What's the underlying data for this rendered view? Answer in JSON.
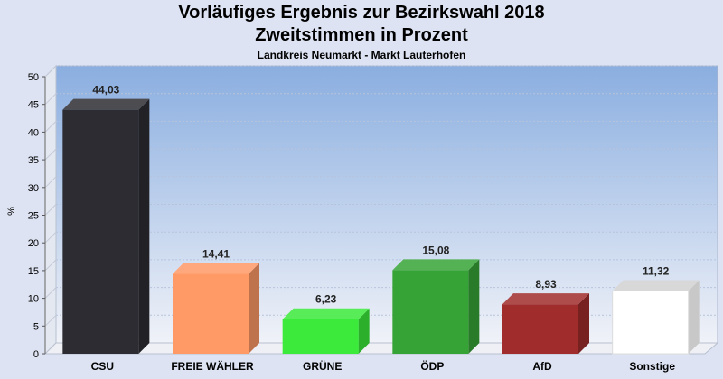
{
  "header": {
    "title_line1": "Vorläufiges Ergebnis zur Bezirkswahl 2018",
    "title_line2": "Zweitstimmen in Prozent",
    "subtitle": "Landkreis Neumarkt - Markt Lauterhofen"
  },
  "colors": {
    "CSU": "#2c2c32",
    "FREIE WÄHLER": "#ff9966",
    "GRÜNE": "#3bea3b",
    "ÖDP": "#36a336",
    "AfD": "#a02c2c",
    "Sonstige": "#ffffff",
    "plot_top": "#8aaee0",
    "plot_bottom": "#f0f2f8"
  },
  "chart_data": {
    "type": "bar",
    "title": "Vorläufiges Ergebnis zur Bezirkswahl 2018",
    "subtitle": "Zweitstimmen in Prozent",
    "ylabel": "%",
    "ylim": [
      0,
      50
    ],
    "yticks": [
      "0",
      "5",
      "10",
      "15",
      "20",
      "25",
      "30",
      "35",
      "40",
      "45",
      "50"
    ],
    "categories": [
      "CSU",
      "FREIE WÄHLER",
      "GRÜNE",
      "ÖDP",
      "AfD",
      "Sonstige"
    ],
    "values": [
      44.03,
      14.41,
      6.23,
      15.08,
      8.93,
      11.32
    ],
    "value_labels": [
      "44,03",
      "14,41",
      "6,23",
      "15,08",
      "8,93",
      "11,32"
    ],
    "grid": true,
    "legend": "none"
  }
}
